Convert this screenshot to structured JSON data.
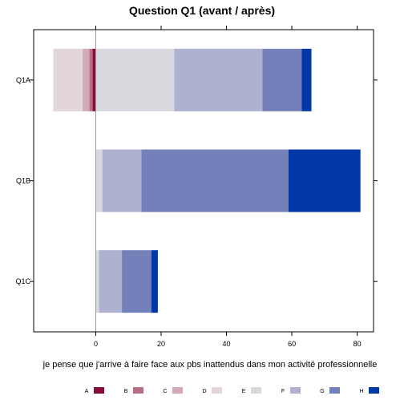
{
  "chart_data": {
    "type": "bar",
    "orientation": "horizontal",
    "stacked": "diverging",
    "title": "Question Q1 (avant / après)",
    "xlabel": "je pense que j'arrive à faire face aux pbs inattendus dans mon activité professionnelle",
    "ylabel": "",
    "xlim": [
      -19,
      85
    ],
    "xticks": [
      0,
      20,
      40,
      60,
      80
    ],
    "categories": [
      "Q1A",
      "Q1B",
      "Q1C"
    ],
    "series": [
      {
        "name": "A",
        "color": "#8b0a3c",
        "values": [
          -1,
          0,
          0
        ]
      },
      {
        "name": "B",
        "color": "#b86f82",
        "values": [
          -1,
          0,
          0
        ]
      },
      {
        "name": "C",
        "color": "#d3a9b3",
        "values": [
          -2,
          0,
          0
        ]
      },
      {
        "name": "D",
        "color": "#e2d6da",
        "values": [
          -9,
          0,
          0
        ]
      },
      {
        "name": "E",
        "color": "#d8d9de",
        "values": [
          24,
          2,
          1
        ]
      },
      {
        "name": "F",
        "color": "#aeb2cf",
        "values": [
          27,
          12,
          7
        ]
      },
      {
        "name": "G",
        "color": "#7480b9",
        "values": [
          12,
          45,
          9
        ]
      },
      {
        "name": "H",
        "color": "#0038a8",
        "values": [
          3,
          22,
          2
        ]
      }
    ],
    "legend_position": "bottom",
    "grid": false,
    "zero_line": true
  }
}
